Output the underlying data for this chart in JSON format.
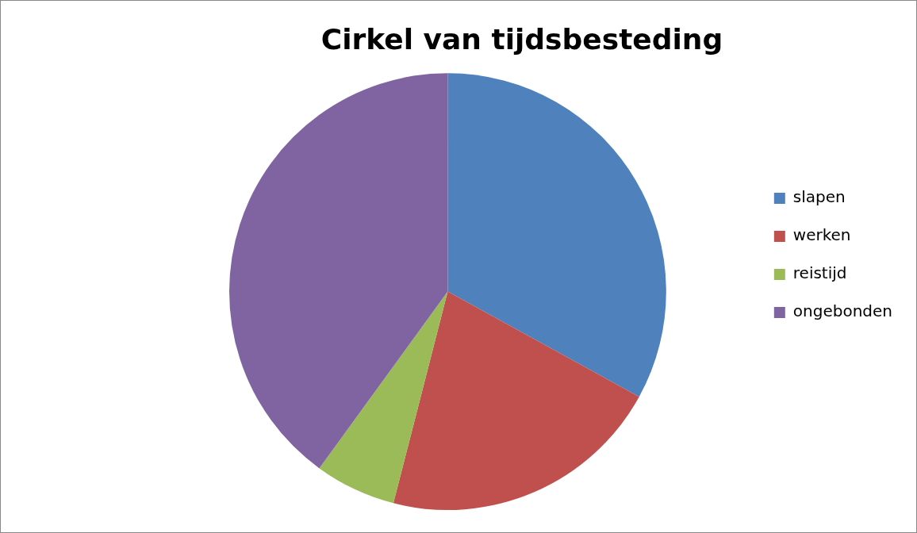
{
  "chart_data": {
    "type": "pie",
    "title": "Cirkel van tijdsbesteding",
    "categories": [
      "slapen",
      "werken",
      "reistijd",
      "ongebonden"
    ],
    "values": [
      33,
      21,
      6,
      40
    ],
    "colors": [
      "#4f81bd",
      "#c0504d",
      "#9bbb59",
      "#8064a2"
    ],
    "legend": "right"
  }
}
